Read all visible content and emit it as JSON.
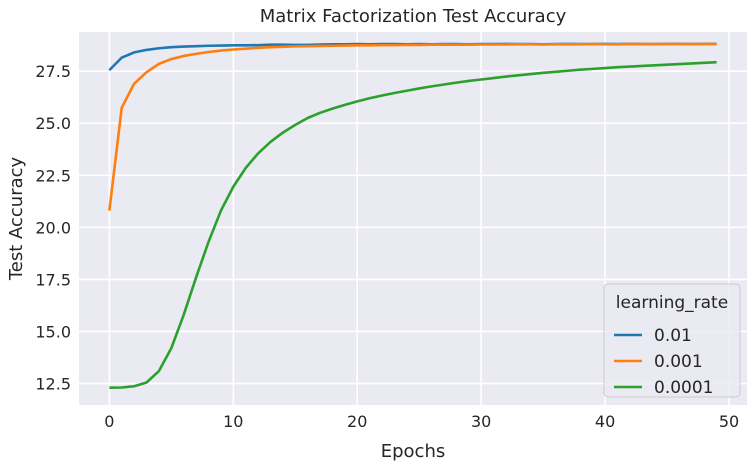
{
  "chart_data": {
    "type": "line",
    "title": "Matrix Factorization Test Accuracy",
    "xlabel": "Epochs",
    "ylabel": "Test Accuracy",
    "xlim": [
      -2.45,
      51.45
    ],
    "ylim": [
      11.47,
      29.38
    ],
    "xticks": [
      0,
      10,
      20,
      30,
      40,
      50
    ],
    "yticks": [
      12.5,
      15.0,
      17.5,
      20.0,
      22.5,
      25.0,
      27.5
    ],
    "xtick_labels": [
      "0",
      "10",
      "20",
      "30",
      "40",
      "50"
    ],
    "ytick_labels": [
      "12.5",
      "15.0",
      "17.5",
      "20.0",
      "22.5",
      "25.0",
      "27.5"
    ],
    "grid": true,
    "legend": {
      "title": "learning_rate",
      "placement": "lower-right"
    },
    "x": [
      0,
      1,
      2,
      3,
      4,
      5,
      6,
      7,
      8,
      9,
      10,
      11,
      12,
      13,
      14,
      15,
      16,
      17,
      18,
      19,
      20,
      21,
      22,
      23,
      24,
      25,
      26,
      27,
      28,
      29,
      30,
      31,
      32,
      33,
      34,
      35,
      36,
      37,
      38,
      39,
      40,
      41,
      42,
      43,
      44,
      45,
      46,
      47,
      48,
      49
    ],
    "series": [
      {
        "name": "0.01",
        "color": "#1f77b4",
        "values": [
          27.55,
          28.15,
          28.4,
          28.52,
          28.6,
          28.65,
          28.68,
          28.7,
          28.72,
          28.73,
          28.74,
          28.74,
          28.75,
          28.77,
          28.77,
          28.76,
          28.76,
          28.78,
          28.79,
          28.79,
          28.8,
          28.79,
          28.8,
          28.8,
          28.79,
          28.8,
          28.79,
          28.8,
          28.8,
          28.79,
          28.8,
          28.8,
          28.81,
          28.8,
          28.8,
          28.79,
          28.8,
          28.81,
          28.8,
          28.8,
          28.81,
          28.8,
          28.81,
          28.8,
          28.8,
          28.81,
          28.81,
          28.8,
          28.81,
          28.81
        ]
      },
      {
        "name": "0.001",
        "color": "#ff7f0e",
        "values": [
          20.8,
          25.75,
          26.9,
          27.45,
          27.85,
          28.08,
          28.23,
          28.33,
          28.42,
          28.49,
          28.54,
          28.58,
          28.62,
          28.65,
          28.67,
          28.69,
          28.7,
          28.71,
          28.72,
          28.73,
          28.74,
          28.74,
          28.75,
          28.75,
          28.76,
          28.76,
          28.77,
          28.77,
          28.77,
          28.77,
          28.78,
          28.78,
          28.78,
          28.79,
          28.79,
          28.78,
          28.79,
          28.79,
          28.79,
          28.8,
          28.79,
          28.79,
          28.8,
          28.8,
          28.8,
          28.8,
          28.8,
          28.8,
          28.8,
          28.8
        ]
      },
      {
        "name": "0.0001",
        "color": "#2ca02c",
        "values": [
          12.3,
          12.31,
          12.37,
          12.55,
          13.1,
          14.2,
          15.8,
          17.6,
          19.3,
          20.8,
          21.95,
          22.85,
          23.55,
          24.1,
          24.55,
          24.92,
          25.25,
          25.5,
          25.7,
          25.88,
          26.05,
          26.2,
          26.33,
          26.45,
          26.56,
          26.67,
          26.77,
          26.86,
          26.95,
          27.03,
          27.1,
          27.17,
          27.24,
          27.3,
          27.36,
          27.42,
          27.47,
          27.52,
          27.57,
          27.61,
          27.65,
          27.69,
          27.72,
          27.75,
          27.78,
          27.81,
          27.84,
          27.87,
          27.9,
          27.93
        ]
      }
    ]
  }
}
